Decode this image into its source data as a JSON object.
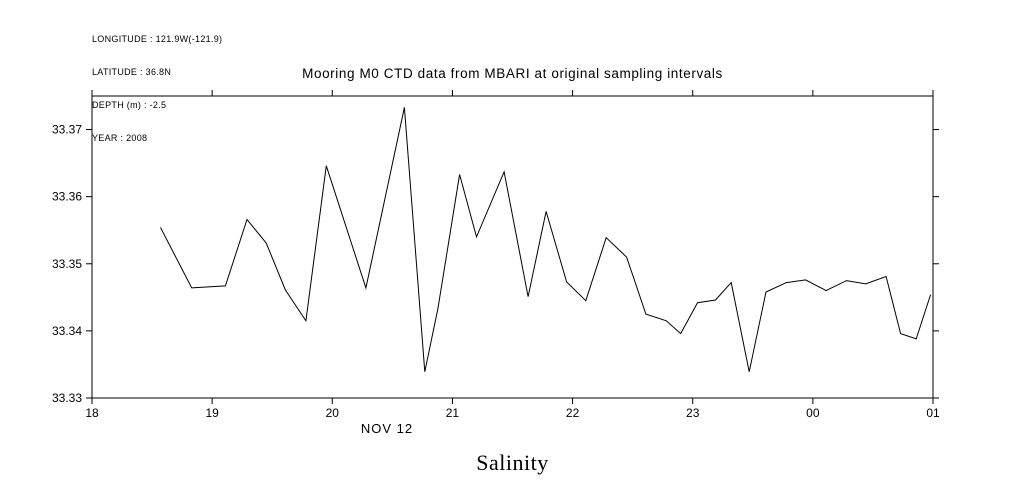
{
  "meta": {
    "longitude": "LONGITUDE : 121.9W(-121.9)",
    "latitude": "LATITUDE : 36.8N",
    "depth": "DEPTH (m) : -2.5",
    "year": "YEAR : 2008"
  },
  "title": "Mooring M0 CTD data from MBARI at original sampling intervals",
  "x_date_label": "NOV 12",
  "footer_label": "Salinity",
  "chart_data": {
    "type": "line",
    "title": "Mooring M0 CTD data from MBARI at original sampling intervals",
    "xlabel": "NOV 12",
    "ylabel": "Salinity",
    "grid": false,
    "legend": "none",
    "line_color": "#000000",
    "xlim": [
      18,
      25
    ],
    "ylim": [
      33.33,
      33.375
    ],
    "x_ticks": [
      "18",
      "19",
      "20",
      "21",
      "22",
      "23",
      "00",
      "01"
    ],
    "x_tick_hours": [
      18,
      19,
      20,
      21,
      22,
      23,
      24,
      25
    ],
    "y_ticks": [
      33.33,
      33.34,
      33.35,
      33.36,
      33.37
    ],
    "y_tick_labels": [
      "33.33",
      "33.34",
      "33.35",
      "33.36",
      "33.37"
    ],
    "x_hours": [
      18.57,
      18.83,
      19.11,
      19.29,
      19.45,
      19.61,
      19.78,
      19.95,
      20.28,
      20.6,
      20.77,
      20.88,
      21.06,
      21.2,
      21.43,
      21.63,
      21.78,
      21.95,
      22.11,
      22.28,
      22.45,
      22.61,
      22.78,
      22.9,
      23.04,
      23.19,
      23.32,
      23.47,
      23.61,
      23.78,
      23.94,
      24.11,
      24.28,
      24.44,
      24.61,
      24.73,
      24.86,
      24.98
    ],
    "values": [
      33.3554,
      33.3464,
      33.3467,
      33.3566,
      33.3531,
      33.3461,
      33.3415,
      33.3646,
      33.3464,
      33.3733,
      33.3339,
      33.3434,
      33.3633,
      33.354,
      33.3637,
      33.3451,
      33.3578,
      33.3473,
      33.3445,
      33.3539,
      33.351,
      33.3425,
      33.3415,
      33.3396,
      33.3442,
      33.3446,
      33.3472,
      33.3339,
      33.3458,
      33.3472,
      33.3476,
      33.346,
      33.3475,
      33.347,
      33.3481,
      33.3396,
      33.3388,
      33.3454
    ]
  }
}
